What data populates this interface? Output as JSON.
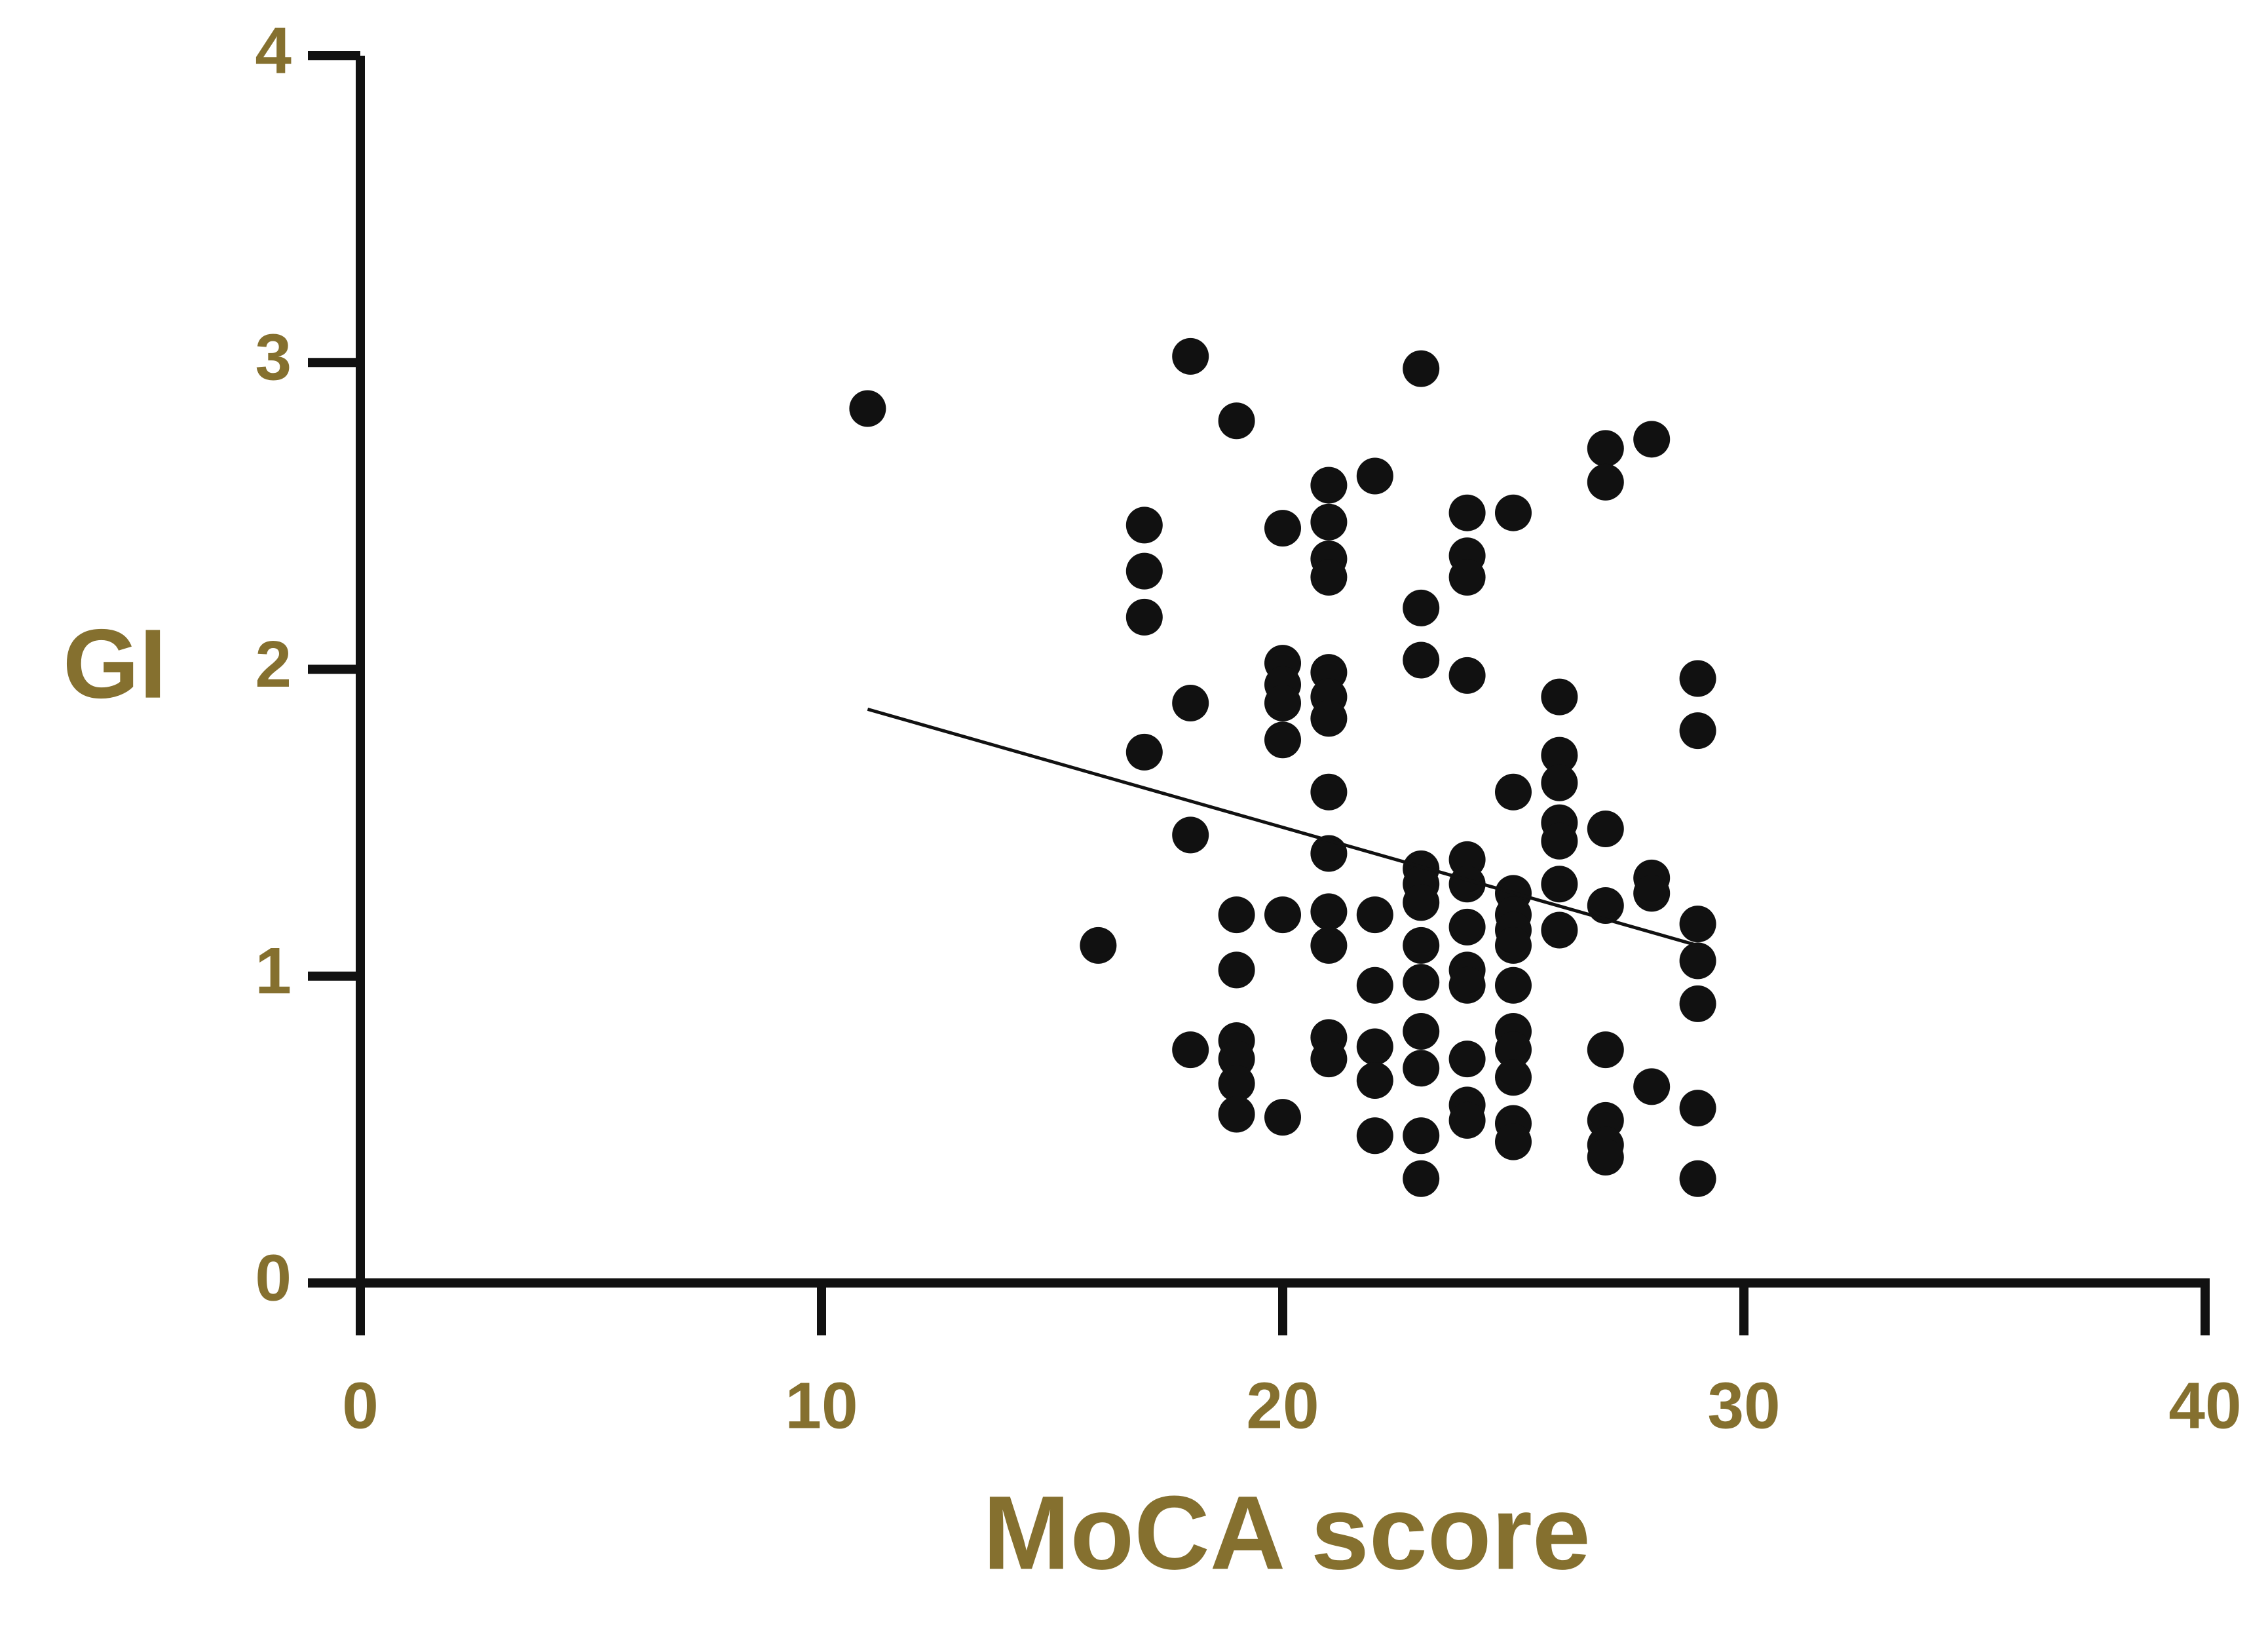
{
  "chart_data": {
    "type": "scatter",
    "title": "",
    "xlabel": "MoCA score",
    "ylabel": "GI",
    "xlim": [
      0,
      40
    ],
    "ylim": [
      0,
      4
    ],
    "x_ticks": [
      "0",
      "10",
      "20",
      "30",
      "40"
    ],
    "y_ticks": [
      "0",
      "1",
      "2",
      "3",
      "4"
    ],
    "grid": false,
    "legend": "none",
    "colors": {
      "label": "#85702F",
      "axis": "#111111",
      "point": "#111111"
    },
    "series": [
      {
        "points": [
          [
            11,
            2.85
          ],
          [
            16,
            1.1
          ],
          [
            17,
            2.47
          ],
          [
            17,
            2.32
          ],
          [
            17,
            2.17
          ],
          [
            17,
            1.73
          ],
          [
            18,
            3.02
          ],
          [
            18,
            1.89
          ],
          [
            18,
            1.46
          ],
          [
            18,
            0.76
          ],
          [
            19,
            2.81
          ],
          [
            19,
            1.2
          ],
          [
            19,
            1.02
          ],
          [
            19,
            0.79
          ],
          [
            19,
            0.73
          ],
          [
            19,
            0.65
          ],
          [
            19,
            0.55
          ],
          [
            20,
            2.46
          ],
          [
            20,
            2.02
          ],
          [
            20,
            1.95
          ],
          [
            20,
            1.89
          ],
          [
            20,
            1.77
          ],
          [
            20,
            1.2
          ],
          [
            20,
            0.54
          ],
          [
            21,
            2.6
          ],
          [
            21,
            2.48
          ],
          [
            21,
            2.36
          ],
          [
            21,
            2.3
          ],
          [
            21,
            1.99
          ],
          [
            21,
            1.91
          ],
          [
            21,
            1.84
          ],
          [
            21,
            1.6
          ],
          [
            21,
            1.4
          ],
          [
            21,
            1.21
          ],
          [
            21,
            1.1
          ],
          [
            21,
            0.8
          ],
          [
            21,
            0.73
          ],
          [
            22,
            2.63
          ],
          [
            22,
            1.2
          ],
          [
            22,
            0.97
          ],
          [
            22,
            0.77
          ],
          [
            22,
            0.66
          ],
          [
            22,
            0.48
          ],
          [
            23,
            2.98
          ],
          [
            23,
            2.2
          ],
          [
            23,
            2.03
          ],
          [
            23,
            1.35
          ],
          [
            23,
            1.3
          ],
          [
            23,
            1.24
          ],
          [
            23,
            1.1
          ],
          [
            23,
            0.98
          ],
          [
            23,
            0.82
          ],
          [
            23,
            0.7
          ],
          [
            23,
            0.48
          ],
          [
            23,
            0.34
          ],
          [
            24,
            2.51
          ],
          [
            24,
            2.37
          ],
          [
            24,
            2.3
          ],
          [
            24,
            1.98
          ],
          [
            24,
            1.38
          ],
          [
            24,
            1.3
          ],
          [
            24,
            1.16
          ],
          [
            24,
            1.02
          ],
          [
            24,
            0.97
          ],
          [
            24,
            0.73
          ],
          [
            24,
            0.58
          ],
          [
            24,
            0.53
          ],
          [
            25,
            2.51
          ],
          [
            25,
            1.6
          ],
          [
            25,
            1.27
          ],
          [
            25,
            1.2
          ],
          [
            25,
            1.15
          ],
          [
            25,
            1.1
          ],
          [
            25,
            0.97
          ],
          [
            25,
            0.82
          ],
          [
            25,
            0.76
          ],
          [
            25,
            0.67
          ],
          [
            25,
            0.52
          ],
          [
            25,
            0.46
          ],
          [
            26,
            1.91
          ],
          [
            26,
            1.72
          ],
          [
            26,
            1.63
          ],
          [
            26,
            1.5
          ],
          [
            26,
            1.44
          ],
          [
            26,
            1.3
          ],
          [
            26,
            1.15
          ],
          [
            27,
            2.72
          ],
          [
            27,
            2.61
          ],
          [
            27,
            1.48
          ],
          [
            27,
            1.23
          ],
          [
            27,
            0.76
          ],
          [
            27,
            0.53
          ],
          [
            27,
            0.45
          ],
          [
            27,
            0.41
          ],
          [
            28,
            2.75
          ],
          [
            28,
            1.32
          ],
          [
            28,
            1.27
          ],
          [
            28,
            0.64
          ],
          [
            29,
            1.97
          ],
          [
            29,
            1.8
          ],
          [
            29,
            1.17
          ],
          [
            29,
            1.05
          ],
          [
            29,
            0.91
          ],
          [
            29,
            0.57
          ],
          [
            29,
            0.34
          ]
        ]
      }
    ],
    "trendline": {
      "type": "linear",
      "x": [
        11,
        29
      ],
      "y": [
        1.87,
        1.1
      ]
    }
  }
}
